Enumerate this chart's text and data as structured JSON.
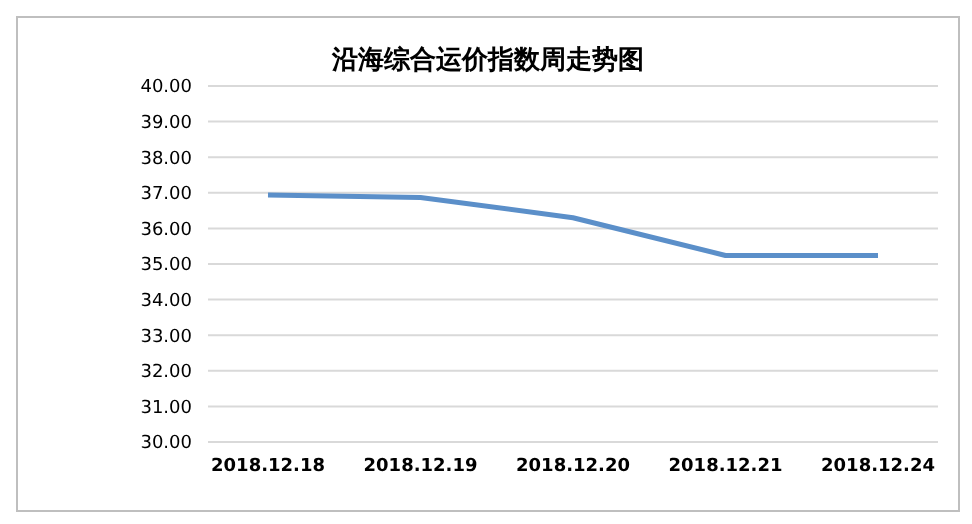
{
  "chart_data": {
    "type": "line",
    "title": "沿海综合运价指数周走势图",
    "categories": [
      "2018.12.18",
      "2018.12.19",
      "2018.12.20",
      "2018.12.21",
      "2018.12.24"
    ],
    "series": [
      {
        "color": "#5b8fc9",
        "values": [
          36.94,
          36.87,
          36.3,
          35.24,
          35.24
        ]
      }
    ],
    "ylim": [
      30,
      40
    ],
    "yticks": [
      {
        "value": 30,
        "label": "30.00"
      },
      {
        "value": 31,
        "label": "31.00"
      },
      {
        "value": 32,
        "label": "32.00"
      },
      {
        "value": 33,
        "label": "33.00"
      },
      {
        "value": 34,
        "label": "34.00"
      },
      {
        "value": 35,
        "label": "35.00"
      },
      {
        "value": 36,
        "label": "36.00"
      },
      {
        "value": 37,
        "label": "37.00"
      },
      {
        "value": 38,
        "label": "38.00"
      },
      {
        "value": 39,
        "label": "39.00"
      },
      {
        "value": 40,
        "label": "40.00"
      }
    ],
    "grid": "y",
    "marker": "none",
    "line_style": "solid"
  }
}
